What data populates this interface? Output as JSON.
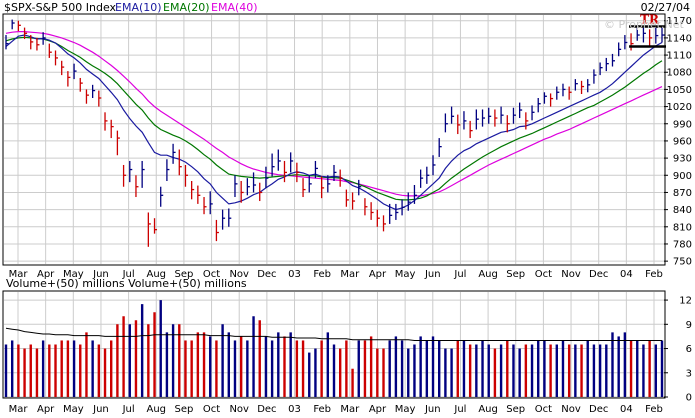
{
  "legend": {
    "symbol": "$SPX-S&P 500 Index",
    "ema10": "EMA(10)",
    "ema20": "EMA(20)",
    "ema40": "EMA(40)"
  },
  "date": "02/27/04",
  "watermark": "© Prophet.Net",
  "volume_label": "Volume+(50) millions  Volume+(50) millions",
  "tr_label": "TR",
  "colors": {
    "up": "#000080",
    "down": "#cc0000",
    "ema10": "#1a1aa0",
    "ema20": "#007700",
    "ema40": "#dd00dd",
    "grid": "#cccccc",
    "frame": "#000000",
    "tr": "#cc0000",
    "vol_ma": "#000000"
  },
  "chart_data": [
    {
      "type": "ohlc",
      "title": "$SPX-S&P 500 Index",
      "ylim": [
        745,
        1180
      ],
      "y_ticks": [
        750,
        780,
        810,
        840,
        870,
        900,
        930,
        960,
        990,
        1020,
        1050,
        1080,
        1110,
        1140,
        1170
      ],
      "x_ticks": [
        "Mar",
        "Apr",
        "May",
        "Jun",
        "Jul",
        "Aug",
        "Sep",
        "Oct",
        "Nov",
        "Dec",
        "03",
        "Feb",
        "Mar",
        "Apr",
        "May",
        "Jun",
        "Jul",
        "Aug",
        "Sep",
        "Oct",
        "Nov",
        "Dec",
        "04",
        "Feb"
      ],
      "close": [
        1130,
        1166,
        1162,
        1148,
        1133,
        1128,
        1140,
        1115,
        1105,
        1089,
        1071,
        1082,
        1061,
        1040,
        1048,
        1035,
        995,
        985,
        965,
        900,
        910,
        880,
        910,
        815,
        805,
        865,
        910,
        940,
        915,
        900,
        875,
        865,
        845,
        850,
        800,
        825,
        825,
        885,
        870,
        880,
        883,
        870,
        895,
        915,
        925,
        905,
        925,
        905,
        875,
        885,
        912,
        878,
        885,
        905,
        895,
        857,
        855,
        880,
        845,
        835,
        825,
        815,
        830,
        835,
        844,
        853,
        865,
        895,
        900,
        918,
        950,
        990,
        1003,
        988,
        995,
        978,
        998,
        1000,
        1003,
        1000,
        1005,
        990,
        1005,
        1014,
        995,
        1010,
        1025,
        1038,
        1034,
        1045,
        1050,
        1045,
        1060,
        1055,
        1058,
        1075,
        1088,
        1095,
        1100,
        1120,
        1132,
        1130,
        1145,
        1148,
        1140,
        1144,
        1145
      ],
      "high": [
        1145,
        1172,
        1170,
        1158,
        1145,
        1140,
        1150,
        1130,
        1118,
        1100,
        1082,
        1095,
        1070,
        1050,
        1058,
        1048,
        1010,
        997,
        978,
        918,
        925,
        900,
        925,
        835,
        825,
        880,
        928,
        955,
        945,
        918,
        890,
        882,
        862,
        872,
        822,
        840,
        842,
        900,
        890,
        895,
        905,
        887,
        915,
        938,
        945,
        925,
        940,
        922,
        895,
        900,
        925,
        898,
        900,
        918,
        910,
        875,
        870,
        892,
        860,
        853,
        840,
        830,
        850,
        850,
        858,
        870,
        883,
        910,
        915,
        935,
        965,
        1008,
        1020,
        1006,
        1012,
        995,
        1015,
        1015,
        1018,
        1015,
        1020,
        1005,
        1018,
        1027,
        1010,
        1022,
        1035,
        1045,
        1043,
        1055,
        1060,
        1055,
        1068,
        1065,
        1068,
        1085,
        1097,
        1105,
        1112,
        1132,
        1145,
        1148,
        1158,
        1158,
        1155,
        1158,
        1158
      ],
      "low": [
        1120,
        1155,
        1152,
        1138,
        1120,
        1118,
        1128,
        1105,
        1092,
        1075,
        1055,
        1068,
        1046,
        1025,
        1035,
        1020,
        978,
        965,
        935,
        880,
        888,
        862,
        878,
        775,
        798,
        845,
        890,
        920,
        900,
        880,
        858,
        850,
        832,
        832,
        785,
        805,
        810,
        862,
        852,
        865,
        870,
        855,
        878,
        898,
        908,
        888,
        905,
        888,
        862,
        870,
        895,
        860,
        870,
        890,
        880,
        845,
        840,
        865,
        830,
        822,
        810,
        802,
        815,
        822,
        830,
        838,
        850,
        878,
        885,
        900,
        932,
        975,
        990,
        972,
        980,
        965,
        980,
        985,
        990,
        985,
        990,
        975,
        990,
        1000,
        980,
        996,
        1010,
        1025,
        1020,
        1032,
        1038,
        1032,
        1048,
        1042,
        1045,
        1060,
        1075,
        1082,
        1090,
        1108,
        1120,
        1118,
        1135,
        1132,
        1125,
        1130,
        1132
      ],
      "ema10": [
        1125,
        1134,
        1143,
        1145,
        1142,
        1138,
        1139,
        1136,
        1131,
        1122,
        1112,
        1105,
        1096,
        1085,
        1077,
        1069,
        1057,
        1045,
        1032,
        1014,
        999,
        986,
        975,
        957,
        940,
        935,
        935,
        931,
        928,
        923,
        915,
        906,
        894,
        885,
        870,
        860,
        850,
        852,
        855,
        860,
        866,
        870,
        878,
        885,
        893,
        897,
        903,
        906,
        904,
        900,
        902,
        898,
        897,
        898,
        897,
        890,
        882,
        878,
        872,
        865,
        858,
        850,
        845,
        840,
        843,
        848,
        856,
        865,
        875,
        885,
        895,
        912,
        925,
        935,
        943,
        948,
        955,
        960,
        965,
        970,
        975,
        977,
        980,
        985,
        986,
        990,
        995,
        1000,
        1005,
        1010,
        1015,
        1020,
        1025,
        1030,
        1035,
        1040,
        1045,
        1052,
        1060,
        1070,
        1080,
        1090,
        1100,
        1110,
        1118,
        1126,
        1132
      ],
      "ema20": [
        1135,
        1138,
        1140,
        1141,
        1140,
        1139,
        1138,
        1135,
        1131,
        1125,
        1118,
        1112,
        1106,
        1098,
        1091,
        1085,
        1078,
        1070,
        1060,
        1048,
        1036,
        1024,
        1014,
        1000,
        988,
        980,
        975,
        970,
        966,
        960,
        953,
        945,
        936,
        928,
        918,
        910,
        902,
        900,
        898,
        897,
        896,
        895,
        896,
        897,
        898,
        899,
        900,
        901,
        900,
        899,
        899,
        897,
        896,
        896,
        895,
        892,
        888,
        884,
        880,
        875,
        870,
        866,
        862,
        858,
        857,
        857,
        858,
        860,
        864,
        870,
        876,
        886,
        895,
        903,
        911,
        918,
        925,
        932,
        938,
        944,
        950,
        955,
        960,
        965,
        969,
        973,
        978,
        983,
        988,
        993,
        998,
        1003,
        1008,
        1013,
        1018,
        1022,
        1028,
        1034,
        1040,
        1047,
        1054,
        1062,
        1070,
        1078,
        1085,
        1093,
        1100
      ],
      "ema40": [
        1148,
        1150,
        1151,
        1151,
        1150,
        1149,
        1148,
        1146,
        1143,
        1140,
        1136,
        1132,
        1127,
        1121,
        1115,
        1108,
        1100,
        1092,
        1083,
        1073,
        1063,
        1052,
        1042,
        1030,
        1020,
        1012,
        1005,
        998,
        991,
        984,
        977,
        970,
        963,
        955,
        947,
        940,
        932,
        926,
        920,
        915,
        911,
        908,
        905,
        903,
        901,
        900,
        899,
        898,
        897,
        896,
        895,
        894,
        893,
        892,
        891,
        889,
        887,
        885,
        882,
        879,
        876,
        873,
        870,
        867,
        865,
        864,
        864,
        864,
        866,
        868,
        871,
        876,
        882,
        888,
        894,
        900,
        906,
        912,
        918,
        923,
        928,
        933,
        938,
        943,
        948,
        953,
        958,
        963,
        967,
        972,
        976,
        980,
        985,
        990,
        995,
        1000,
        1005,
        1010,
        1015,
        1020,
        1025,
        1030,
        1035,
        1040,
        1045,
        1050,
        1055
      ],
      "tr_lines": [
        1160,
        1125
      ]
    },
    {
      "type": "bar",
      "title": "Volume+(50) millions",
      "ylim": [
        0,
        13
      ],
      "y_ticks": [
        0,
        3,
        6,
        9,
        12
      ],
      "x_ticks": [
        "Mar",
        "Apr",
        "May",
        "Jun",
        "Jul",
        "Aug",
        "Sep",
        "Oct",
        "Nov",
        "Dec",
        "03",
        "Feb",
        "Mar",
        "Apr",
        "May",
        "Jun",
        "Jul",
        "Aug",
        "Sep",
        "Oct",
        "Nov",
        "Dec",
        "04",
        "Feb"
      ],
      "values": [
        6.5,
        7,
        6.5,
        6,
        6.5,
        6,
        7,
        6.5,
        6.5,
        7,
        7,
        7,
        6.5,
        8,
        7,
        6.5,
        6,
        7,
        9,
        10,
        9,
        9.5,
        11.5,
        9,
        10.5,
        12,
        8,
        9,
        9,
        7,
        7,
        8,
        8,
        7.5,
        7,
        9,
        8,
        7,
        7.5,
        7,
        10,
        9.5,
        7.5,
        7,
        8,
        7.5,
        8,
        7,
        7,
        5.5,
        6,
        7,
        8,
        6.5,
        6,
        7,
        3.5,
        7,
        7,
        7.5,
        6,
        6,
        7,
        7.5,
        7,
        6,
        6.5,
        7.5,
        7,
        7.5,
        7,
        6,
        6,
        7,
        7,
        6.5,
        6.5,
        7,
        6.5,
        6,
        6.5,
        7,
        6.5,
        6,
        6.5,
        6.5,
        7,
        7,
        6.5,
        6.5,
        7,
        6.5,
        6.5,
        6.5,
        7,
        6.5,
        6.5,
        6.5,
        8,
        7.5,
        8,
        7,
        7,
        6.5,
        7,
        6.5,
        7
      ],
      "ma": [
        8.5,
        8.4,
        8.3,
        8.1,
        8,
        7.9,
        7.8,
        7.8,
        7.7,
        7.7,
        7.7,
        7.6,
        7.6,
        7.6,
        7.6,
        7.6,
        7.5,
        7.5,
        7.5,
        7.5,
        7.5,
        7.5,
        7.6,
        7.6,
        7.7,
        7.7,
        7.7,
        7.7,
        7.7,
        7.7,
        7.7,
        7.7,
        7.7,
        7.6,
        7.6,
        7.6,
        7.6,
        7.5,
        7.5,
        7.5,
        7.5,
        7.5,
        7.5,
        7.4,
        7.4,
        7.4,
        7.4,
        7.3,
        7.3,
        7.3,
        7.3,
        7.2,
        7.2,
        7.2,
        7.2,
        7.2,
        7.1,
        7.1,
        7.1,
        7.1,
        7.1,
        7.1,
        7.1,
        7.1,
        7.1,
        7.1,
        7,
        7,
        7,
        7,
        7,
        7,
        7,
        7,
        7,
        7,
        7,
        7,
        7,
        7,
        7,
        7,
        7,
        7,
        7,
        7,
        7,
        7,
        7,
        7,
        7,
        7,
        7,
        7,
        7,
        7,
        7,
        7,
        7,
        7,
        7,
        7,
        7,
        7,
        7,
        7,
        7
      ]
    }
  ]
}
